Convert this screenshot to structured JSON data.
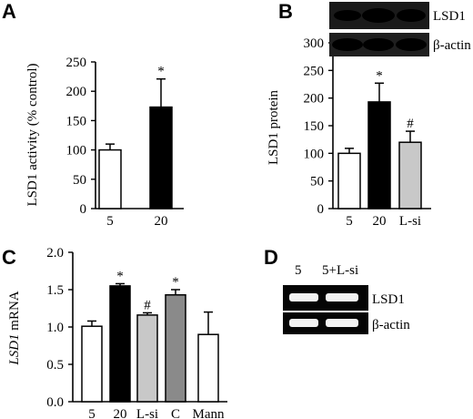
{
  "chart_data": [
    {
      "panel": "A",
      "type": "bar",
      "ylabel": "LSD1 activity (% control)",
      "categories": [
        "5",
        "20"
      ],
      "values": [
        100,
        173
      ],
      "errors": [
        10,
        48
      ],
      "fills": [
        "#ffffff",
        "#000000"
      ],
      "markers": [
        "",
        "*"
      ],
      "ylim": [
        0,
        250
      ],
      "yticks": [
        0,
        50,
        100,
        150,
        200,
        250
      ]
    },
    {
      "panel": "B",
      "type": "bar",
      "ylabel": "LSD1 protein",
      "categories": [
        "5",
        "20",
        "L-si"
      ],
      "values": [
        100,
        193,
        120
      ],
      "errors": [
        9,
        34,
        20
      ],
      "fills": [
        "#ffffff",
        "#000000",
        "#c8c8c8"
      ],
      "markers": [
        "",
        "*",
        "#"
      ],
      "ylim": [
        0,
        300
      ],
      "yticks": [
        0,
        50,
        100,
        150,
        200,
        250,
        300
      ]
    },
    {
      "panel": "C",
      "type": "bar",
      "ylabel_italic": "LSD1",
      "ylabel_rest": " mRNA",
      "categories": [
        "5",
        "20",
        "L-si",
        "C",
        "Mann"
      ],
      "values": [
        1.01,
        1.55,
        1.16,
        1.43,
        0.9
      ],
      "errors": [
        0.07,
        0.03,
        0.03,
        0.07,
        0.3
      ],
      "fills": [
        "#ffffff",
        "#000000",
        "#c8c8c8",
        "#8a8a8a",
        "#ffffff"
      ],
      "markers": [
        "",
        "*",
        "#",
        "*",
        ""
      ],
      "ylim": [
        0,
        2.0
      ],
      "yticks": [
        "0.0",
        "0.5",
        "1.0",
        "1.5",
        "2.0"
      ]
    }
  ],
  "panel_letters": [
    "A",
    "B",
    "C",
    "D"
  ],
  "blot_b": {
    "labels": [
      "LSD1",
      "β-actin"
    ]
  },
  "blot_d": {
    "lanes": [
      "5",
      "5+L-si"
    ],
    "labels": [
      "LSD1",
      "β-actin"
    ]
  }
}
